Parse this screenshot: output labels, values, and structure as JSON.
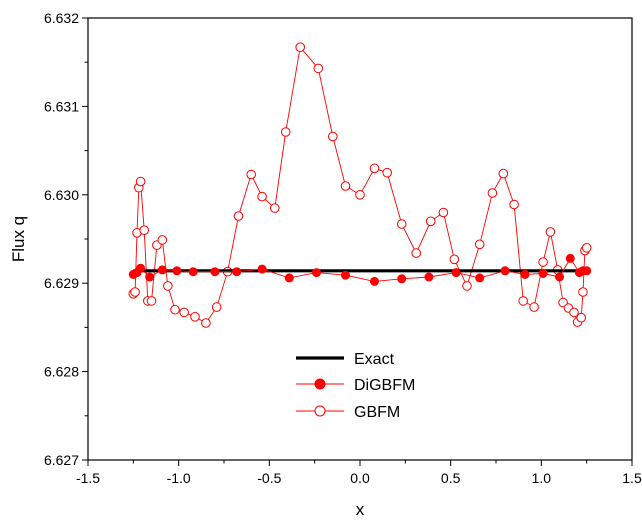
{
  "chart_data": {
    "type": "line",
    "xlabel": "x",
    "ylabel": "Flux q",
    "xlim": [
      -1.5,
      1.5
    ],
    "ylim": [
      6.627,
      6.632
    ],
    "xticks": [
      "-1.5",
      "-1.0",
      "-0.5",
      "0.0",
      "0.5",
      "1.0",
      "1.5"
    ],
    "yticks": [
      "6.627",
      "6.628",
      "6.629",
      "6.630",
      "6.631",
      "6.632"
    ],
    "legend_position": "bottom-center",
    "series": [
      {
        "name": "Exact",
        "style": "thick-line",
        "color": "#000000",
        "x": [
          -1.25,
          1.25
        ],
        "y": [
          6.62914,
          6.62914
        ]
      },
      {
        "name": "DiGBFM",
        "style": "filled-circle-line",
        "color": "#ff0000",
        "x": [
          -1.25,
          -1.23,
          -1.21,
          -1.16,
          -1.09,
          -1.01,
          -0.92,
          -0.8,
          -0.68,
          -0.54,
          -0.39,
          -0.24,
          -0.08,
          0.08,
          0.23,
          0.38,
          0.53,
          0.66,
          0.8,
          0.91,
          1.01,
          1.1,
          1.16,
          1.21,
          1.23,
          1.25
        ],
        "y": [
          6.6291,
          6.62912,
          6.62917,
          6.62907,
          6.62915,
          6.62914,
          6.62913,
          6.62913,
          6.62913,
          6.62916,
          6.62906,
          6.62912,
          6.62909,
          6.62902,
          6.62905,
          6.62907,
          6.62912,
          6.62906,
          6.62914,
          6.6291,
          6.62911,
          6.62907,
          6.62928,
          6.62912,
          6.62914,
          6.62914
        ]
      },
      {
        "name": "GBFM",
        "style": "open-circle-line",
        "color": "#ff0000",
        "x": [
          -1.25,
          -1.24,
          -1.23,
          -1.22,
          -1.21,
          -1.19,
          -1.17,
          -1.15,
          -1.12,
          -1.09,
          -1.06,
          -1.02,
          -0.97,
          -0.91,
          -0.85,
          -0.79,
          -0.73,
          -0.67,
          -0.6,
          -0.54,
          -0.47,
          -0.41,
          -0.33,
          -0.23,
          -0.15,
          -0.08,
          0.0,
          0.08,
          0.15,
          0.23,
          0.31,
          0.39,
          0.46,
          0.52,
          0.59,
          0.66,
          0.73,
          0.79,
          0.85,
          0.9,
          0.96,
          1.01,
          1.05,
          1.09,
          1.12,
          1.15,
          1.18,
          1.2,
          1.22,
          1.23,
          1.24,
          1.25
        ],
        "y": [
          6.62888,
          6.6289,
          6.62957,
          6.63008,
          6.63015,
          6.6296,
          6.6288,
          6.6288,
          6.62943,
          6.62949,
          6.62897,
          6.6287,
          6.62867,
          6.62862,
          6.62855,
          6.62873,
          6.62913,
          6.62976,
          6.63023,
          6.62998,
          6.62985,
          6.63071,
          6.63167,
          6.63143,
          6.63066,
          6.6301,
          6.63,
          6.6303,
          6.63025,
          6.62967,
          6.62934,
          6.6297,
          6.6298,
          6.62927,
          6.62897,
          6.62944,
          6.63002,
          6.63024,
          6.62989,
          6.6288,
          6.62873,
          6.62924,
          6.62958,
          6.62915,
          6.62878,
          6.62872,
          6.62867,
          6.62856,
          6.62861,
          6.6289,
          6.62937,
          6.6294
        ]
      }
    ]
  }
}
